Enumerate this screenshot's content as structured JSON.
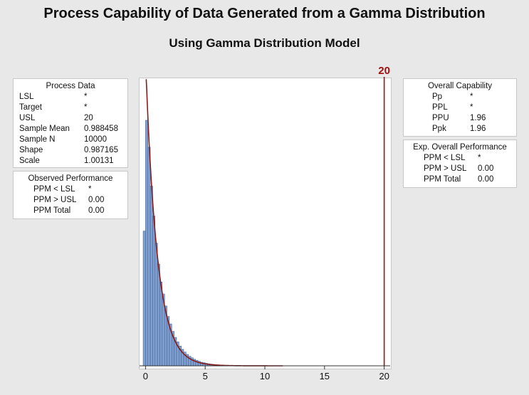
{
  "title": "Process Capability of Data Generated from a Gamma Distribution",
  "subtitle": "Using Gamma Distribution Model",
  "process_data": {
    "header": "Process Data",
    "rows": [
      {
        "label": "LSL",
        "value": "*"
      },
      {
        "label": "Target",
        "value": "*"
      },
      {
        "label": "USL",
        "value": "20"
      },
      {
        "label": "Sample Mean",
        "value": "0.988458"
      },
      {
        "label": "Sample N",
        "value": "10000"
      },
      {
        "label": "Shape",
        "value": "0.987165"
      },
      {
        "label": "Scale",
        "value": "1.00131"
      }
    ]
  },
  "observed_performance": {
    "header": "Observed Performance",
    "rows": [
      {
        "label": "PPM < LSL",
        "value": "*"
      },
      {
        "label": "PPM > USL",
        "value": "0.00"
      },
      {
        "label": "PPM Total",
        "value": "0.00"
      }
    ]
  },
  "overall_capability": {
    "header": "Overall Capability",
    "rows": [
      {
        "label": "Pp",
        "value": "*"
      },
      {
        "label": "PPL",
        "value": "*"
      },
      {
        "label": "PPU",
        "value": "1.96"
      },
      {
        "label": "Ppk",
        "value": "1.96"
      }
    ]
  },
  "exp_overall_performance": {
    "header": "Exp. Overall Performance",
    "rows": [
      {
        "label": "PPM < LSL",
        "value": "*"
      },
      {
        "label": "PPM > USL",
        "value": "0.00"
      },
      {
        "label": "PPM Total",
        "value": "0.00"
      }
    ]
  },
  "chart_data": {
    "type": "bar",
    "title": "Process Capability of Data Generated from a Gamma Distribution",
    "subtitle": "Using Gamma Distribution Model",
    "xlabel": "",
    "ylabel": "",
    "xlim": [
      -0.5,
      20.5
    ],
    "x_ticks": [
      "0",
      "5",
      "10",
      "15",
      "20"
    ],
    "bin_width": 0.2,
    "bin_start": -0.2,
    "values": [
      0.45,
      0.82,
      0.73,
      0.6,
      0.5,
      0.41,
      0.34,
      0.28,
      0.24,
      0.2,
      0.165,
      0.14,
      0.115,
      0.095,
      0.08,
      0.066,
      0.055,
      0.046,
      0.038,
      0.032,
      0.027,
      0.022,
      0.018,
      0.015,
      0.012,
      0.0105,
      0.0085,
      0.007,
      0.0058,
      0.0048,
      0.004,
      0.0033,
      0.0027,
      0.0022,
      0.0018,
      0.0015,
      0.0012,
      0.001,
      0.0008,
      0.0007
    ],
    "ylim": [
      0,
      0.96
    ],
    "fit_curve": {
      "name": "Gamma",
      "shape": 0.987165,
      "scale": 1.00131,
      "color": "#8b1a1a"
    },
    "usl": {
      "value": 20,
      "label": "20",
      "color": "#a01010"
    },
    "bar_color": "#7fa0d0",
    "bar_edge_color": "#3c5a8c",
    "grid": false
  }
}
